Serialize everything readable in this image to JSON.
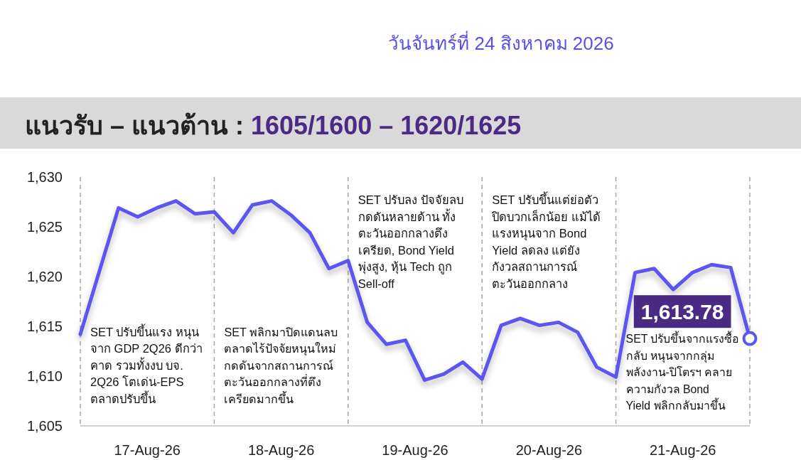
{
  "chart_data": {
    "type": "line",
    "title": "แนวรับ – แนวต้าน : 1605/1600 – 1620/1625",
    "subtitle": "วันจันทร์ที่ 24 สิงหาคม 2026",
    "x": [
      "2026-08-17T00:00",
      "2026-08-17T06:51",
      "2026-08-17T10:17",
      "2026-08-17T13:43",
      "2026-08-17T17:09",
      "2026-08-17T20:34",
      "2026-08-18T00:00",
      "2026-08-18T03:26",
      "2026-08-18T06:51",
      "2026-08-18T10:17",
      "2026-08-18T13:43",
      "2026-08-18T17:09",
      "2026-08-18T20:34",
      "2026-08-19T00:00",
      "2026-08-19T03:26",
      "2026-08-19T06:51",
      "2026-08-19T10:17",
      "2026-08-19T13:43",
      "2026-08-19T17:09",
      "2026-08-19T20:34",
      "2026-08-20T00:00",
      "2026-08-20T03:26",
      "2026-08-20T06:51",
      "2026-08-20T10:17",
      "2026-08-20T13:43",
      "2026-08-20T17:09",
      "2026-08-20T20:34",
      "2026-08-21T00:00",
      "2026-08-21T03:26",
      "2026-08-21T06:51",
      "2026-08-21T10:17",
      "2026-08-21T13:43",
      "2026-08-21T17:09",
      "2026-08-21T20:34",
      "2026-08-22T00:00"
    ],
    "series": [
      {
        "color": "#5b55f0",
        "values": [
          1614.2,
          1626.9,
          1626.0,
          1626.9,
          1627.6,
          1626.3,
          1626.5,
          1624.4,
          1627.2,
          1627.6,
          1626.2,
          1624.4,
          1620.8,
          1621.6,
          1615.4,
          1613.2,
          1613.6,
          1609.6,
          1610.2,
          1611.4,
          1609.7,
          1615.1,
          1615.8,
          1615.1,
          1615.4,
          1614.4,
          1610.9,
          1609.9,
          1620.4,
          1620.8,
          1618.7,
          1620.4,
          1621.2,
          1620.9,
          1613.78
        ],
        "value_labels": [
          null,
          null,
          null,
          null,
          null,
          null,
          null,
          null,
          null,
          null,
          null,
          null,
          null,
          null,
          null,
          null,
          null,
          null,
          null,
          null,
          null,
          null,
          null,
          null,
          null,
          null,
          null,
          null,
          null,
          null,
          null,
          null,
          null,
          null,
          "1,613.78"
        ]
      }
    ],
    "xlim": [
      "2026-08-17T00:00",
      "2026-08-22T00:00"
    ],
    "xticks": [
      {
        "value": "2026-08-17T12:00",
        "label": "17-Aug-26"
      },
      {
        "value": "2026-08-18T12:00",
        "label": "18-Aug-26"
      },
      {
        "value": "2026-08-19T12:00",
        "label": "19-Aug-26"
      },
      {
        "value": "2026-08-20T12:00",
        "label": "20-Aug-26"
      },
      {
        "value": "2026-08-21T12:00",
        "label": "21-Aug-26"
      }
    ],
    "ylim": [
      1605,
      1630
    ],
    "yticks": [
      {
        "value": 1605,
        "label": "1,605"
      },
      {
        "value": 1610,
        "label": "1,610"
      },
      {
        "value": 1615,
        "label": "1,615"
      },
      {
        "value": 1620,
        "label": "1,620"
      },
      {
        "value": 1625,
        "label": "1,625"
      },
      {
        "value": 1630,
        "label": "1,630"
      }
    ],
    "ref_lines": [
      {
        "axis": "x",
        "value": "2026-08-17",
        "line_style": "dashed",
        "color": "#a6a6a6"
      },
      {
        "axis": "x",
        "value": "2026-08-18",
        "line_style": "dashed",
        "color": "#a6a6a6"
      },
      {
        "axis": "x",
        "value": "2026-08-19",
        "line_style": "dashed",
        "color": "#a6a6a6"
      },
      {
        "axis": "x",
        "value": "2026-08-20",
        "line_style": "dashed",
        "color": "#a6a6a6"
      },
      {
        "axis": "x",
        "value": "2026-08-21",
        "line_style": "dashed",
        "color": "#a6a6a6"
      },
      {
        "axis": "x",
        "value": "2026-08-22",
        "line_style": "dashed",
        "color": "#a6a6a6"
      }
    ],
    "annotations": [
      "SET ปรับขึ้นแรง หนุน\nจาก GDP 2Q26 ดีกว่า\nคาด รวมทั้งงบ บจ.\n2Q26 โตเด่น-EPS\nตลาดปรับขึ้น",
      "SET พลิกมาปิดแดนลบ\nตลาดไร้ปัจจัยหนุนใหม่\nกดดันจากสถานการณ์\nตะวันออกกลางที่ตึง\nเครียดมากขึ้น",
      "SET ปรับลง ปัจจัยลบ\nกดดันหลายด้าน ทั้ง\nตะวันออกกลางตึง\nเครียด, Bond Yield\nพุ่งสูง, หุ้น Tech ถูก\nSell-off",
      "SET ปรับขึ้นแต่ย่อตัว\nปิดบวกเล็กน้อย แม้ได้\nแรงหนุนจาก Bond\nYield ลดลง แต่ยัง\nกังวลสถานการณ์\nตะวันออกกลาง",
      "SET ปรับขึ้นจากแรงซื้อ\nกลับ หนุนจากกลุ่ม\nพลังงาน-ปิโตรฯ คลาย\nความกังวล Bond\nYield พลิกกลับมาขึ้น"
    ],
    "line_style": "solid"
  }
}
